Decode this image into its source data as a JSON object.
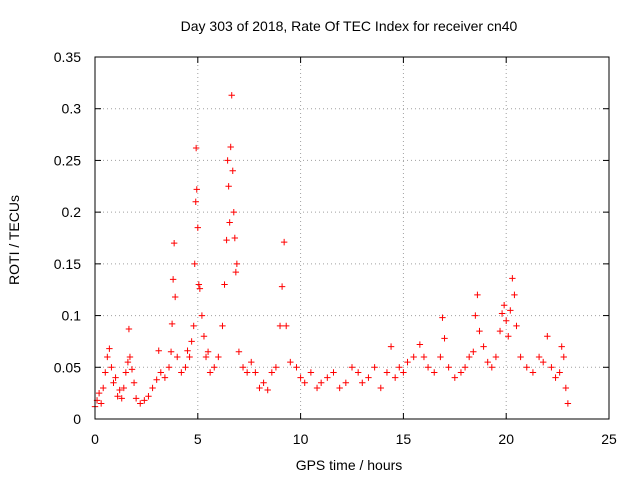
{
  "chart_data": {
    "type": "scatter",
    "title": "Day 303 of 2018, Rate Of TEC Index for receiver cn40",
    "xlabel": "GPS time / hours",
    "ylabel": "ROTI / TECUs",
    "xlim": [
      0,
      25
    ],
    "ylim": [
      0,
      0.35
    ],
    "xticks": [
      "0",
      "5",
      "10",
      "15",
      "20",
      "25"
    ],
    "yticks": [
      "0",
      "0.05",
      "0.1",
      "0.15",
      "0.2",
      "0.25",
      "0.3",
      "0.35"
    ],
    "grid": true,
    "marker": "+",
    "color": "#ff0000",
    "series": [
      {
        "points": [
          [
            0.0,
            0.012
          ],
          [
            0.1,
            0.018
          ],
          [
            0.2,
            0.025
          ],
          [
            0.3,
            0.015
          ],
          [
            0.4,
            0.03
          ],
          [
            0.5,
            0.045
          ],
          [
            0.6,
            0.06
          ],
          [
            0.7,
            0.068
          ],
          [
            0.8,
            0.05
          ],
          [
            0.9,
            0.035
          ],
          [
            1.0,
            0.04
          ],
          [
            1.1,
            0.022
          ],
          [
            1.2,
            0.028
          ],
          [
            1.3,
            0.02
          ],
          [
            1.4,
            0.03
          ],
          [
            1.5,
            0.045
          ],
          [
            1.6,
            0.055
          ],
          [
            1.65,
            0.087
          ],
          [
            1.7,
            0.06
          ],
          [
            1.8,
            0.048
          ],
          [
            1.9,
            0.035
          ],
          [
            2.0,
            0.02
          ],
          [
            2.2,
            0.015
          ],
          [
            2.4,
            0.018
          ],
          [
            2.6,
            0.022
          ],
          [
            2.8,
            0.03
          ],
          [
            3.0,
            0.038
          ],
          [
            3.1,
            0.066
          ],
          [
            3.2,
            0.045
          ],
          [
            3.4,
            0.04
          ],
          [
            3.6,
            0.05
          ],
          [
            3.7,
            0.065
          ],
          [
            3.75,
            0.092
          ],
          [
            3.8,
            0.135
          ],
          [
            3.85,
            0.17
          ],
          [
            3.9,
            0.118
          ],
          [
            4.0,
            0.06
          ],
          [
            4.2,
            0.045
          ],
          [
            4.4,
            0.05
          ],
          [
            4.5,
            0.066
          ],
          [
            4.6,
            0.06
          ],
          [
            4.7,
            0.075
          ],
          [
            4.8,
            0.09
          ],
          [
            4.85,
            0.15
          ],
          [
            4.9,
            0.21
          ],
          [
            4.92,
            0.262
          ],
          [
            4.95,
            0.222
          ],
          [
            5.0,
            0.185
          ],
          [
            5.05,
            0.13
          ],
          [
            5.1,
            0.126
          ],
          [
            5.2,
            0.1
          ],
          [
            5.3,
            0.08
          ],
          [
            5.4,
            0.06
          ],
          [
            5.5,
            0.065
          ],
          [
            5.6,
            0.045
          ],
          [
            5.8,
            0.05
          ],
          [
            6.0,
            0.06
          ],
          [
            6.2,
            0.09
          ],
          [
            6.3,
            0.13
          ],
          [
            6.4,
            0.173
          ],
          [
            6.45,
            0.25
          ],
          [
            6.5,
            0.225
          ],
          [
            6.55,
            0.19
          ],
          [
            6.6,
            0.263
          ],
          [
            6.65,
            0.313
          ],
          [
            6.7,
            0.24
          ],
          [
            6.75,
            0.2
          ],
          [
            6.8,
            0.175
          ],
          [
            6.85,
            0.142
          ],
          [
            6.9,
            0.15
          ],
          [
            7.0,
            0.065
          ],
          [
            7.2,
            0.05
          ],
          [
            7.4,
            0.045
          ],
          [
            7.6,
            0.055
          ],
          [
            7.8,
            0.045
          ],
          [
            8.0,
            0.03
          ],
          [
            8.2,
            0.035
          ],
          [
            8.4,
            0.028
          ],
          [
            8.6,
            0.045
          ],
          [
            8.8,
            0.05
          ],
          [
            9.0,
            0.09
          ],
          [
            9.1,
            0.128
          ],
          [
            9.2,
            0.171
          ],
          [
            9.3,
            0.09
          ],
          [
            9.5,
            0.055
          ],
          [
            9.8,
            0.05
          ],
          [
            10.0,
            0.04
          ],
          [
            10.2,
            0.035
          ],
          [
            10.5,
            0.045
          ],
          [
            10.8,
            0.03
          ],
          [
            11.0,
            0.035
          ],
          [
            11.3,
            0.04
          ],
          [
            11.6,
            0.045
          ],
          [
            11.9,
            0.03
          ],
          [
            12.2,
            0.035
          ],
          [
            12.5,
            0.05
          ],
          [
            12.8,
            0.045
          ],
          [
            13.0,
            0.035
          ],
          [
            13.3,
            0.04
          ],
          [
            13.6,
            0.05
          ],
          [
            13.9,
            0.03
          ],
          [
            14.2,
            0.045
          ],
          [
            14.4,
            0.07
          ],
          [
            14.6,
            0.04
          ],
          [
            14.8,
            0.05
          ],
          [
            15.0,
            0.045
          ],
          [
            15.2,
            0.055
          ],
          [
            15.5,
            0.06
          ],
          [
            15.8,
            0.072
          ],
          [
            16.0,
            0.06
          ],
          [
            16.2,
            0.05
          ],
          [
            16.5,
            0.045
          ],
          [
            16.8,
            0.06
          ],
          [
            16.9,
            0.098
          ],
          [
            17.0,
            0.078
          ],
          [
            17.2,
            0.05
          ],
          [
            17.5,
            0.04
          ],
          [
            17.8,
            0.045
          ],
          [
            18.0,
            0.05
          ],
          [
            18.2,
            0.06
          ],
          [
            18.4,
            0.065
          ],
          [
            18.5,
            0.1
          ],
          [
            18.6,
            0.12
          ],
          [
            18.7,
            0.085
          ],
          [
            18.9,
            0.07
          ],
          [
            19.1,
            0.055
          ],
          [
            19.3,
            0.05
          ],
          [
            19.5,
            0.06
          ],
          [
            19.7,
            0.085
          ],
          [
            19.8,
            0.102
          ],
          [
            19.9,
            0.11
          ],
          [
            20.0,
            0.095
          ],
          [
            20.1,
            0.08
          ],
          [
            20.2,
            0.105
          ],
          [
            20.3,
            0.136
          ],
          [
            20.4,
            0.12
          ],
          [
            20.5,
            0.09
          ],
          [
            20.7,
            0.06
          ],
          [
            21.0,
            0.05
          ],
          [
            21.3,
            0.045
          ],
          [
            21.6,
            0.06
          ],
          [
            21.8,
            0.055
          ],
          [
            22.0,
            0.08
          ],
          [
            22.2,
            0.05
          ],
          [
            22.4,
            0.04
          ],
          [
            22.6,
            0.045
          ],
          [
            22.7,
            0.07
          ],
          [
            22.8,
            0.06
          ],
          [
            22.9,
            0.03
          ],
          [
            23.0,
            0.015
          ]
        ]
      }
    ]
  }
}
